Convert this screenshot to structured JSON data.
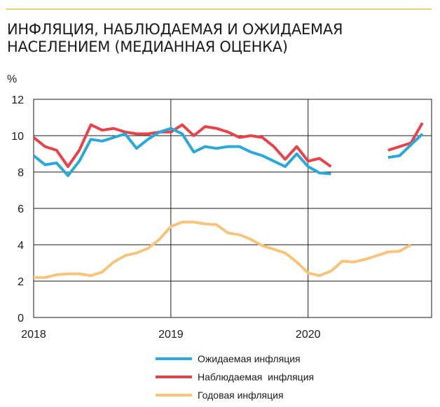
{
  "header": {
    "title_line1": "ИНФЛЯЦИЯ, НАБЛЮДАЕМАЯ И ОЖИДАЕМАЯ",
    "title_line2": "НАСЕЛЕНИЕМ (МЕДИАННАЯ ОЦЕНКА)"
  },
  "colors": {
    "accent_rule": "#e8d27a",
    "expected": "#2ba8d8",
    "observed": "#e8424a",
    "annual": "#f6c47a"
  },
  "chart_data": {
    "type": "line",
    "xlabel": "",
    "ylabel": "%",
    "xlim": [
      2018.0,
      2020.9
    ],
    "ylim": [
      0,
      12
    ],
    "y_ticks": [
      0,
      2,
      4,
      6,
      8,
      10,
      12
    ],
    "x_ticks": [
      {
        "value": 2018,
        "label": "2018"
      },
      {
        "value": 2019,
        "label": "2019"
      },
      {
        "value": 2020,
        "label": "2020"
      }
    ],
    "grid": true,
    "legend_position": "bottom",
    "series": [
      {
        "name": "Ожидаемая инфляция",
        "color": "#2ba8d8",
        "points": [
          [
            2018.0,
            8.9
          ],
          [
            2018.083,
            8.4
          ],
          [
            2018.167,
            8.5
          ],
          [
            2018.25,
            7.8
          ],
          [
            2018.333,
            8.6
          ],
          [
            2018.417,
            9.8
          ],
          [
            2018.5,
            9.7
          ],
          [
            2018.583,
            9.9
          ],
          [
            2018.667,
            10.1
          ],
          [
            2018.75,
            9.3
          ],
          [
            2018.833,
            9.8
          ],
          [
            2018.917,
            10.2
          ],
          [
            2019.0,
            10.4
          ],
          [
            2019.083,
            10.1
          ],
          [
            2019.167,
            9.1
          ],
          [
            2019.25,
            9.4
          ],
          [
            2019.333,
            9.3
          ],
          [
            2019.417,
            9.4
          ],
          [
            2019.5,
            9.4
          ],
          [
            2019.583,
            9.1
          ],
          [
            2019.667,
            8.9
          ],
          [
            2019.75,
            8.6
          ],
          [
            2019.833,
            8.3
          ],
          [
            2019.917,
            9.0
          ],
          [
            2020.0,
            8.3
          ],
          [
            2020.083,
            7.95
          ],
          [
            2020.167,
            7.9
          ],
          null,
          [
            2020.583,
            8.8
          ],
          [
            2020.667,
            8.9
          ],
          [
            2020.75,
            9.5
          ],
          [
            2020.833,
            10.1
          ]
        ]
      },
      {
        "name": "Наблюдаемая  инфляция",
        "color": "#e8424a",
        "points": [
          [
            2018.0,
            9.9
          ],
          [
            2018.083,
            9.4
          ],
          [
            2018.167,
            9.2
          ],
          [
            2018.25,
            8.3
          ],
          [
            2018.333,
            9.2
          ],
          [
            2018.417,
            10.6
          ],
          [
            2018.5,
            10.3
          ],
          [
            2018.583,
            10.4
          ],
          [
            2018.667,
            10.2
          ],
          [
            2018.75,
            10.1
          ],
          [
            2018.833,
            10.1
          ],
          [
            2018.917,
            10.2
          ],
          [
            2019.0,
            10.2
          ],
          [
            2019.083,
            10.6
          ],
          [
            2019.167,
            10.0
          ],
          [
            2019.25,
            10.5
          ],
          [
            2019.333,
            10.4
          ],
          [
            2019.417,
            10.2
          ],
          [
            2019.5,
            9.9
          ],
          [
            2019.583,
            10.0
          ],
          [
            2019.667,
            9.9
          ],
          [
            2019.75,
            9.4
          ],
          [
            2019.833,
            8.7
          ],
          [
            2019.917,
            9.4
          ],
          [
            2020.0,
            8.6
          ],
          [
            2020.083,
            8.75
          ],
          [
            2020.167,
            8.3
          ],
          null,
          [
            2020.583,
            9.2
          ],
          [
            2020.667,
            9.4
          ],
          [
            2020.75,
            9.6
          ],
          [
            2020.833,
            10.7
          ]
        ]
      },
      {
        "name": "Годовая инфляция",
        "color": "#f6c47a",
        "points": [
          [
            2018.0,
            2.2
          ],
          [
            2018.083,
            2.2
          ],
          [
            2018.167,
            2.35
          ],
          [
            2018.25,
            2.4
          ],
          [
            2018.333,
            2.4
          ],
          [
            2018.417,
            2.3
          ],
          [
            2018.5,
            2.5
          ],
          [
            2018.583,
            3.05
          ],
          [
            2018.667,
            3.4
          ],
          [
            2018.75,
            3.55
          ],
          [
            2018.833,
            3.8
          ],
          [
            2018.917,
            4.3
          ],
          [
            2019.0,
            5.0
          ],
          [
            2019.083,
            5.25
          ],
          [
            2019.167,
            5.25
          ],
          [
            2019.25,
            5.15
          ],
          [
            2019.333,
            5.1
          ],
          [
            2019.417,
            4.65
          ],
          [
            2019.5,
            4.55
          ],
          [
            2019.583,
            4.3
          ],
          [
            2019.667,
            3.95
          ],
          [
            2019.75,
            3.75
          ],
          [
            2019.833,
            3.55
          ],
          [
            2019.917,
            3.05
          ],
          [
            2020.0,
            2.45
          ],
          [
            2020.083,
            2.3
          ],
          [
            2020.167,
            2.55
          ],
          [
            2020.25,
            3.1
          ],
          [
            2020.333,
            3.05
          ],
          [
            2020.417,
            3.2
          ],
          [
            2020.5,
            3.4
          ],
          [
            2020.583,
            3.6
          ],
          [
            2020.667,
            3.65
          ],
          [
            2020.75,
            4.0
          ]
        ]
      }
    ]
  }
}
